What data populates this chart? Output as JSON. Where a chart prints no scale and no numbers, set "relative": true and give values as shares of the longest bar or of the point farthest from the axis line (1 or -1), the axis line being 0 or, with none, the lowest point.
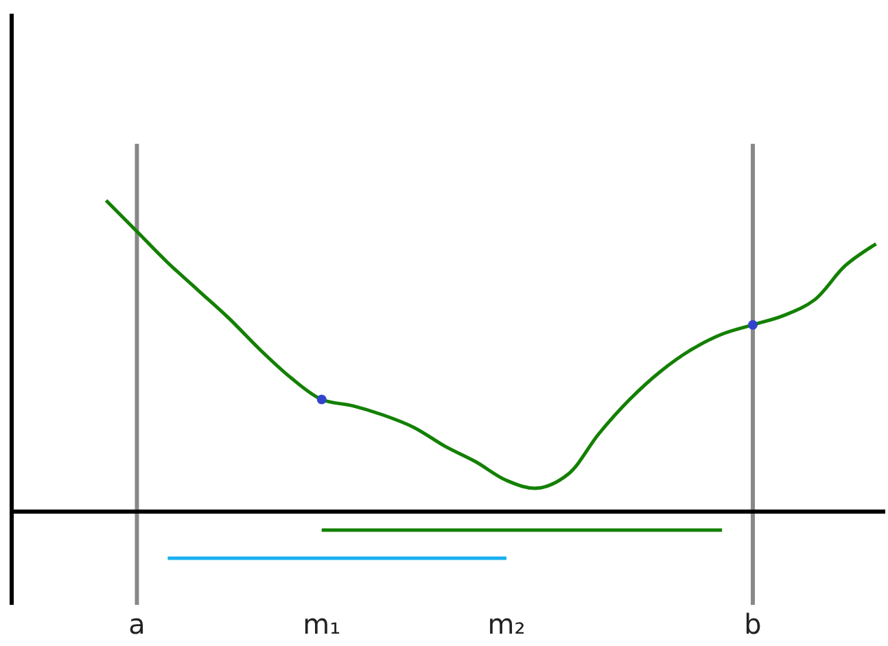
{
  "chart_data": {
    "type": "line",
    "relative": true,
    "categories": [
      null,
      "a",
      null,
      null,
      null,
      null,
      null,
      "m₁",
      null,
      null,
      null,
      null,
      null,
      "m₂",
      null,
      null,
      null,
      null,
      null,
      null,
      null,
      "b",
      null,
      null,
      null,
      null
    ],
    "series": [
      {
        "color": "#138000",
        "values": [
          1.0,
          0.9,
          0.8,
          0.71,
          0.62,
          0.52,
          0.43,
          0.36,
          0.34,
          0.31,
          0.27,
          0.21,
          0.16,
          0.1,
          0.075,
          0.12,
          0.25,
          0.36,
          0.45,
          0.52,
          0.57,
          0.6,
          0.63,
          0.68,
          0.79,
          0.86
        ]
      },
      {
        "type": "scatter",
        "color": "#3344cc",
        "marker": "circle",
        "values": [
          null,
          null,
          null,
          null,
          null,
          null,
          null,
          0.36,
          null,
          null,
          null,
          null,
          null,
          null,
          null,
          null,
          null,
          null,
          null,
          null,
          null,
          0.6,
          null,
          null,
          null,
          null
        ]
      },
      {
        "color": "#1ab0f0",
        "values": [
          null,
          null,
          -0.15,
          -0.15,
          -0.15,
          -0.15,
          -0.15,
          -0.15,
          -0.15,
          -0.15,
          -0.15,
          -0.15,
          -0.15,
          -0.15,
          null,
          null,
          null,
          null,
          null,
          null,
          null,
          null,
          null,
          null,
          null,
          null
        ]
      },
      {
        "color": "#138000",
        "values": [
          null,
          null,
          null,
          null,
          null,
          null,
          null,
          -0.06,
          -0.06,
          -0.06,
          -0.06,
          -0.06,
          -0.06,
          -0.06,
          -0.06,
          -0.06,
          -0.06,
          -0.06,
          -0.06,
          -0.06,
          -0.06,
          null,
          null,
          null,
          null,
          null
        ]
      }
    ],
    "ref_lines": [
      {
        "axis": "x",
        "value": "a",
        "color": "#888888"
      },
      {
        "axis": "x",
        "value": "b",
        "color": "#888888"
      }
    ]
  }
}
